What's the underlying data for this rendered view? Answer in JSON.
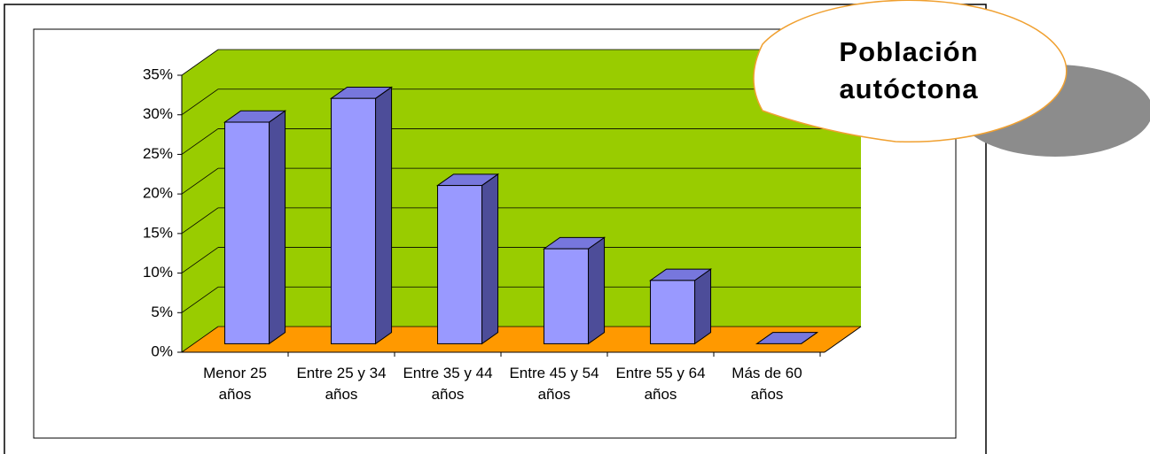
{
  "chart_data": {
    "type": "bar3d",
    "title": "Población autóctona",
    "categories": [
      "Menor 25 años",
      "Entre 25 y 34 años",
      "Entre 35 y 44 años",
      "Entre 45 y 54 años",
      "Entre 55 y 64 años",
      "Más de 60 años"
    ],
    "values": [
      28,
      31,
      20,
      12,
      8,
      0
    ],
    "color": "#9999ff",
    "wall_color": "#99cc00",
    "floor_color": "#ff9900",
    "ylim": [
      0,
      35
    ],
    "yticks": [
      {
        "value": 0,
        "label": "0%"
      },
      {
        "value": 5,
        "label": "5%"
      },
      {
        "value": 10,
        "label": "10%"
      },
      {
        "value": 15,
        "label": "15%"
      },
      {
        "value": 20,
        "label": "20%"
      },
      {
        "value": 25,
        "label": "25%"
      },
      {
        "value": 30,
        "label": "30%"
      },
      {
        "value": 35,
        "label": "35%"
      }
    ],
    "grid": true
  }
}
